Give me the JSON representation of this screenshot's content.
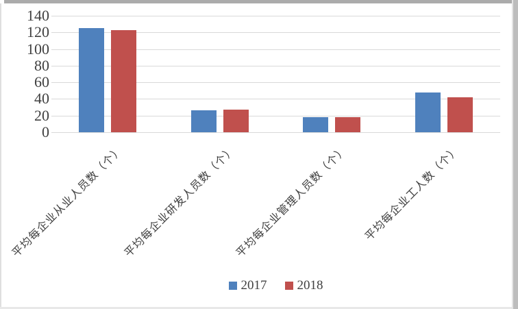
{
  "chart_data": {
    "type": "bar",
    "categories": [
      "平均每企业从业人员数（个）",
      "平均每企业研发人员数（个）",
      "平均每企业管理人员数（个）",
      "平均每企业工人数（个）"
    ],
    "series": [
      {
        "name": "2017",
        "color": "#4F81BD",
        "values": [
          125,
          26,
          18,
          48
        ]
      },
      {
        "name": "2018",
        "color": "#C0504D",
        "values": [
          123,
          27,
          18,
          42
        ]
      }
    ],
    "title": "",
    "xlabel": "",
    "ylabel": "",
    "ylim": [
      0,
      140
    ],
    "yticks": [
      0,
      20,
      40,
      60,
      80,
      100,
      120,
      140
    ],
    "grid": true,
    "legend_position": "bottom",
    "x_label_rotation_deg": 45
  },
  "colors": {
    "gridline": "#D9D9D9",
    "axis_text": "#3F3F3F",
    "frame_top": "#ABABAB",
    "frame_right": "#BDBDBD",
    "frame_bottom": "#E8E8E8",
    "frame_left": "#DFDFDF",
    "background": "#FFFFFF"
  }
}
